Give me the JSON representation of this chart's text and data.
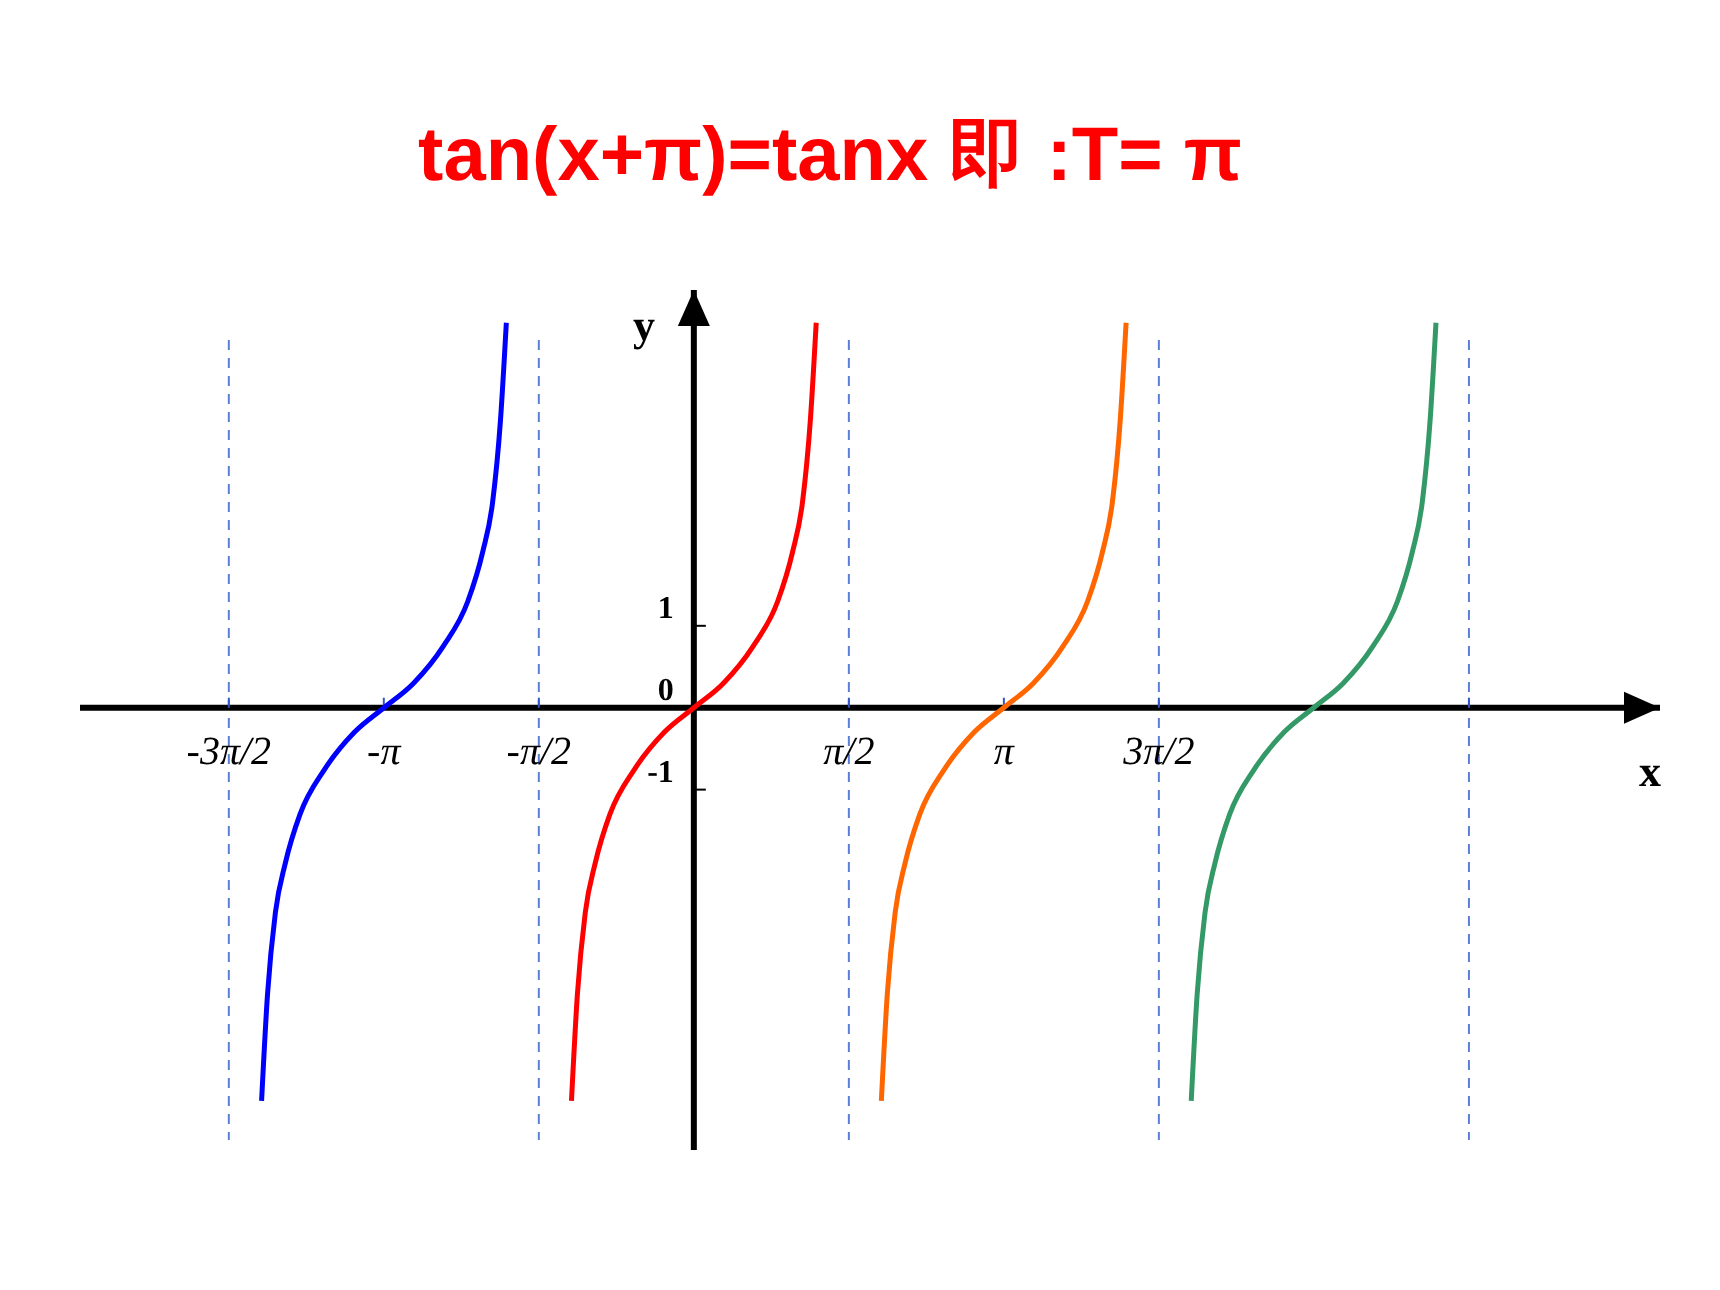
{
  "chart_data": {
    "type": "line",
    "title": "tan(x+π)=tanx 即 :T= π",
    "xlabel": "x",
    "ylabel": "y",
    "xlim": [
      -6.22,
      9.79
    ],
    "ylim": [
      -5.4,
      5.1
    ],
    "xticks": [
      {
        "value": -4.712,
        "label": "-3π/2"
      },
      {
        "value": -3.1416,
        "label": "-π"
      },
      {
        "value": -1.5708,
        "label": "-π/2"
      },
      {
        "value": 1.5708,
        "label": "π/2"
      },
      {
        "value": 3.1416,
        "label": "π"
      },
      {
        "value": 4.712,
        "label": "3π/2"
      },
      {
        "value": 7.854,
        "label": null
      }
    ],
    "yticks": [
      -1,
      {
        "value": 0,
        "label": "0"
      },
      1
    ],
    "ref_lines": [
      {
        "axis": "x",
        "value": -4.712,
        "color": "#5b7fd9",
        "line_style": "dashed"
      },
      {
        "axis": "x",
        "value": -1.5708,
        "color": "#5b7fd9",
        "line_style": "dashed"
      },
      {
        "axis": "x",
        "value": 1.5708,
        "color": "#5b7fd9",
        "line_style": "dashed"
      },
      {
        "axis": "x",
        "value": 4.712,
        "color": "#5b7fd9",
        "line_style": "dashed"
      },
      {
        "axis": "x",
        "value": 7.854,
        "color": "#5b7fd9",
        "line_style": "dashed"
      }
    ],
    "series": [
      {
        "color": "#0000ff",
        "x": [
          -4.38,
          -4.32,
          -4.24,
          -4.14,
          -3.99,
          -3.74,
          -3.44,
          -3.14,
          -2.84,
          -2.54,
          -2.29,
          -2.14,
          -2.04,
          -1.96,
          -1.9
        ],
        "values": [
          -4.8,
          -3.5,
          -2.5,
          -1.9,
          -1.3,
          -0.75,
          -0.3,
          0,
          0.3,
          0.75,
          1.3,
          1.9,
          2.5,
          3.5,
          4.7
        ]
      },
      {
        "color": "#ff0000",
        "x": [
          -1.24,
          -1.18,
          -1.1,
          -1.0,
          -0.85,
          -0.6,
          -0.3,
          0,
          0.3,
          0.6,
          0.85,
          1.0,
          1.1,
          1.18,
          1.24
        ],
        "values": [
          -4.8,
          -3.5,
          -2.5,
          -1.9,
          -1.3,
          -0.75,
          -0.3,
          0,
          0.3,
          0.75,
          1.3,
          1.9,
          2.5,
          3.5,
          4.7
        ]
      },
      {
        "color": "#ff6600",
        "x": [
          1.9,
          1.96,
          2.04,
          2.14,
          2.29,
          2.54,
          2.84,
          3.14,
          3.44,
          3.74,
          3.99,
          4.14,
          4.24,
          4.32,
          4.38
        ],
        "values": [
          -4.8,
          -3.5,
          -2.5,
          -1.9,
          -1.3,
          -0.75,
          -0.3,
          0,
          0.3,
          0.75,
          1.3,
          1.9,
          2.5,
          3.5,
          4.7
        ]
      },
      {
        "color": "#339966",
        "x": [
          5.04,
          5.1,
          5.18,
          5.28,
          5.43,
          5.68,
          5.98,
          6.28,
          6.58,
          6.88,
          7.13,
          7.28,
          7.38,
          7.46,
          7.52
        ],
        "values": [
          -4.8,
          -3.5,
          -2.5,
          -1.9,
          -1.3,
          -0.75,
          -0.3,
          0,
          0.3,
          0.75,
          1.3,
          1.9,
          2.5,
          3.5,
          4.7
        ]
      }
    ]
  }
}
